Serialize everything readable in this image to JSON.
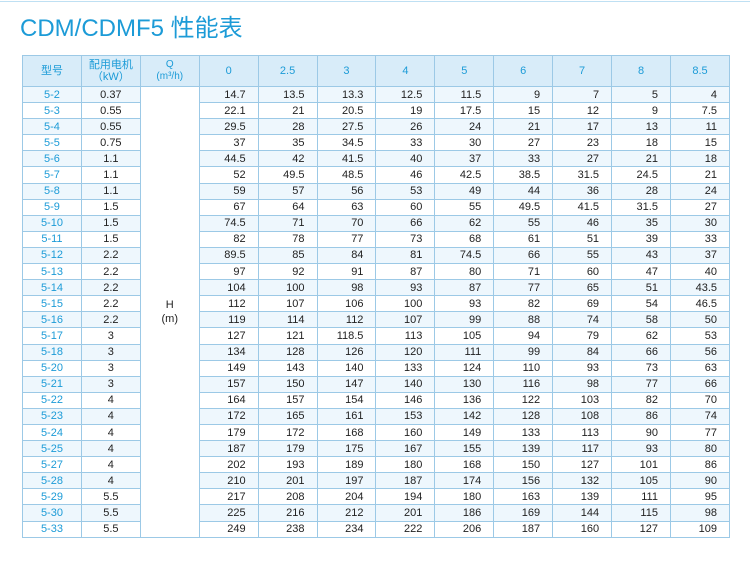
{
  "header": {
    "title": "CDM/CDMF5 性能表"
  },
  "table": {
    "columns": [
      [
        "型号"
      ],
      [
        "配用电机",
        "（kW）"
      ],
      [
        "Q",
        "(m³/h)"
      ],
      [
        "0"
      ],
      [
        "2.5"
      ],
      [
        "3"
      ],
      [
        "4"
      ],
      [
        "5"
      ],
      [
        "6"
      ],
      [
        "7"
      ],
      [
        "8"
      ],
      [
        "8.5"
      ]
    ],
    "head_label": [
      "H",
      "(m)"
    ],
    "rows": [
      [
        "5-2",
        "0.37",
        "14.7",
        "13.5",
        "13.3",
        "12.5",
        "11.5",
        "9",
        "7",
        "5",
        "4"
      ],
      [
        "5-3",
        "0.55",
        "22.1",
        "21",
        "20.5",
        "19",
        "17.5",
        "15",
        "12",
        "9",
        "7.5"
      ],
      [
        "5-4",
        "0.55",
        "29.5",
        "28",
        "27.5",
        "26",
        "24",
        "21",
        "17",
        "13",
        "11"
      ],
      [
        "5-5",
        "0.75",
        "37",
        "35",
        "34.5",
        "33",
        "30",
        "27",
        "23",
        "18",
        "15"
      ],
      [
        "5-6",
        "1.1",
        "44.5",
        "42",
        "41.5",
        "40",
        "37",
        "33",
        "27",
        "21",
        "18"
      ],
      [
        "5-7",
        "1.1",
        "52",
        "49.5",
        "48.5",
        "46",
        "42.5",
        "38.5",
        "31.5",
        "24.5",
        "21"
      ],
      [
        "5-8",
        "1.1",
        "59",
        "57",
        "56",
        "53",
        "49",
        "44",
        "36",
        "28",
        "24"
      ],
      [
        "5-9",
        "1.5",
        "67",
        "64",
        "63",
        "60",
        "55",
        "49.5",
        "41.5",
        "31.5",
        "27"
      ],
      [
        "5-10",
        "1.5",
        "74.5",
        "71",
        "70",
        "66",
        "62",
        "55",
        "46",
        "35",
        "30"
      ],
      [
        "5-11",
        "1.5",
        "82",
        "78",
        "77",
        "73",
        "68",
        "61",
        "51",
        "39",
        "33"
      ],
      [
        "5-12",
        "2.2",
        "89.5",
        "85",
        "84",
        "81",
        "74.5",
        "66",
        "55",
        "43",
        "37"
      ],
      [
        "5-13",
        "2.2",
        "97",
        "92",
        "91",
        "87",
        "80",
        "71",
        "60",
        "47",
        "40"
      ],
      [
        "5-14",
        "2.2",
        "104",
        "100",
        "98",
        "93",
        "87",
        "77",
        "65",
        "51",
        "43.5"
      ],
      [
        "5-15",
        "2.2",
        "112",
        "107",
        "106",
        "100",
        "93",
        "82",
        "69",
        "54",
        "46.5"
      ],
      [
        "5-16",
        "2.2",
        "119",
        "114",
        "112",
        "107",
        "99",
        "88",
        "74",
        "58",
        "50"
      ],
      [
        "5-17",
        "3",
        "127",
        "121",
        "118.5",
        "113",
        "105",
        "94",
        "79",
        "62",
        "53"
      ],
      [
        "5-18",
        "3",
        "134",
        "128",
        "126",
        "120",
        "111",
        "99",
        "84",
        "66",
        "56"
      ],
      [
        "5-20",
        "3",
        "149",
        "143",
        "140",
        "133",
        "124",
        "110",
        "93",
        "73",
        "63"
      ],
      [
        "5-21",
        "3",
        "157",
        "150",
        "147",
        "140",
        "130",
        "116",
        "98",
        "77",
        "66"
      ],
      [
        "5-22",
        "4",
        "164",
        "157",
        "154",
        "146",
        "136",
        "122",
        "103",
        "82",
        "70"
      ],
      [
        "5-23",
        "4",
        "172",
        "165",
        "161",
        "153",
        "142",
        "128",
        "108",
        "86",
        "74"
      ],
      [
        "5-24",
        "4",
        "179",
        "172",
        "168",
        "160",
        "149",
        "133",
        "113",
        "90",
        "77"
      ],
      [
        "5-25",
        "4",
        "187",
        "179",
        "175",
        "167",
        "155",
        "139",
        "117",
        "93",
        "80"
      ],
      [
        "5-27",
        "4",
        "202",
        "193",
        "189",
        "180",
        "168",
        "150",
        "127",
        "101",
        "86"
      ],
      [
        "5-28",
        "4",
        "210",
        "201",
        "197",
        "187",
        "174",
        "156",
        "132",
        "105",
        "90"
      ],
      [
        "5-29",
        "5.5",
        "217",
        "208",
        "204",
        "194",
        "180",
        "163",
        "139",
        "111",
        "95"
      ],
      [
        "5-30",
        "5.5",
        "225",
        "216",
        "212",
        "201",
        "186",
        "169",
        "144",
        "115",
        "98"
      ],
      [
        "5-33",
        "5.5",
        "249",
        "238",
        "234",
        "222",
        "206",
        "187",
        "160",
        "127",
        "109"
      ]
    ]
  }
}
